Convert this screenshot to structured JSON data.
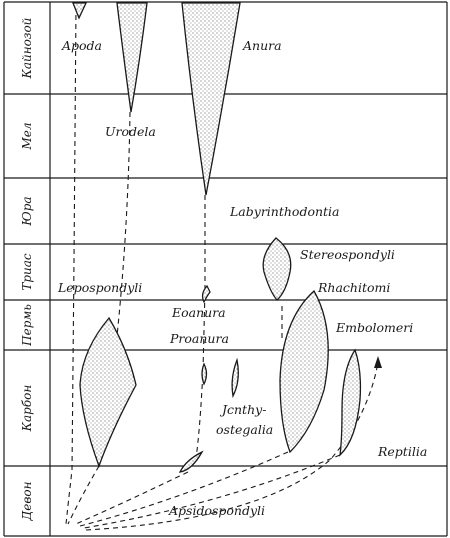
{
  "periods": [
    {
      "id": "cenozoic",
      "label": "Кайнозой"
    },
    {
      "id": "cretaceous",
      "label": "Мел"
    },
    {
      "id": "jurassic",
      "label": "Юра"
    },
    {
      "id": "triassic",
      "label": "Триас"
    },
    {
      "id": "permian",
      "label": "Пермь"
    },
    {
      "id": "carboniferous",
      "label": "Карбон"
    },
    {
      "id": "devonian",
      "label": "Девон"
    }
  ],
  "taxa": {
    "apoda": "Apoda",
    "anura": "Anura",
    "urodela": "Urodela",
    "labyrinthodontia": "Labyrinthodontia",
    "stereospondyli": "Stereospondyli",
    "lepospondyli": "Lepospondyli",
    "rhachitomi": "Rhachitomi",
    "eoanura": "Eoanura",
    "embolomeri": "Embolomeri",
    "proanura": "Proanura",
    "ichthyostegalia_1": "Jcnthy-",
    "ichthyostegalia_2": "ostegalia",
    "reptilia": "Reptilia",
    "apsidospondyli": "Apsidospondyli"
  }
}
